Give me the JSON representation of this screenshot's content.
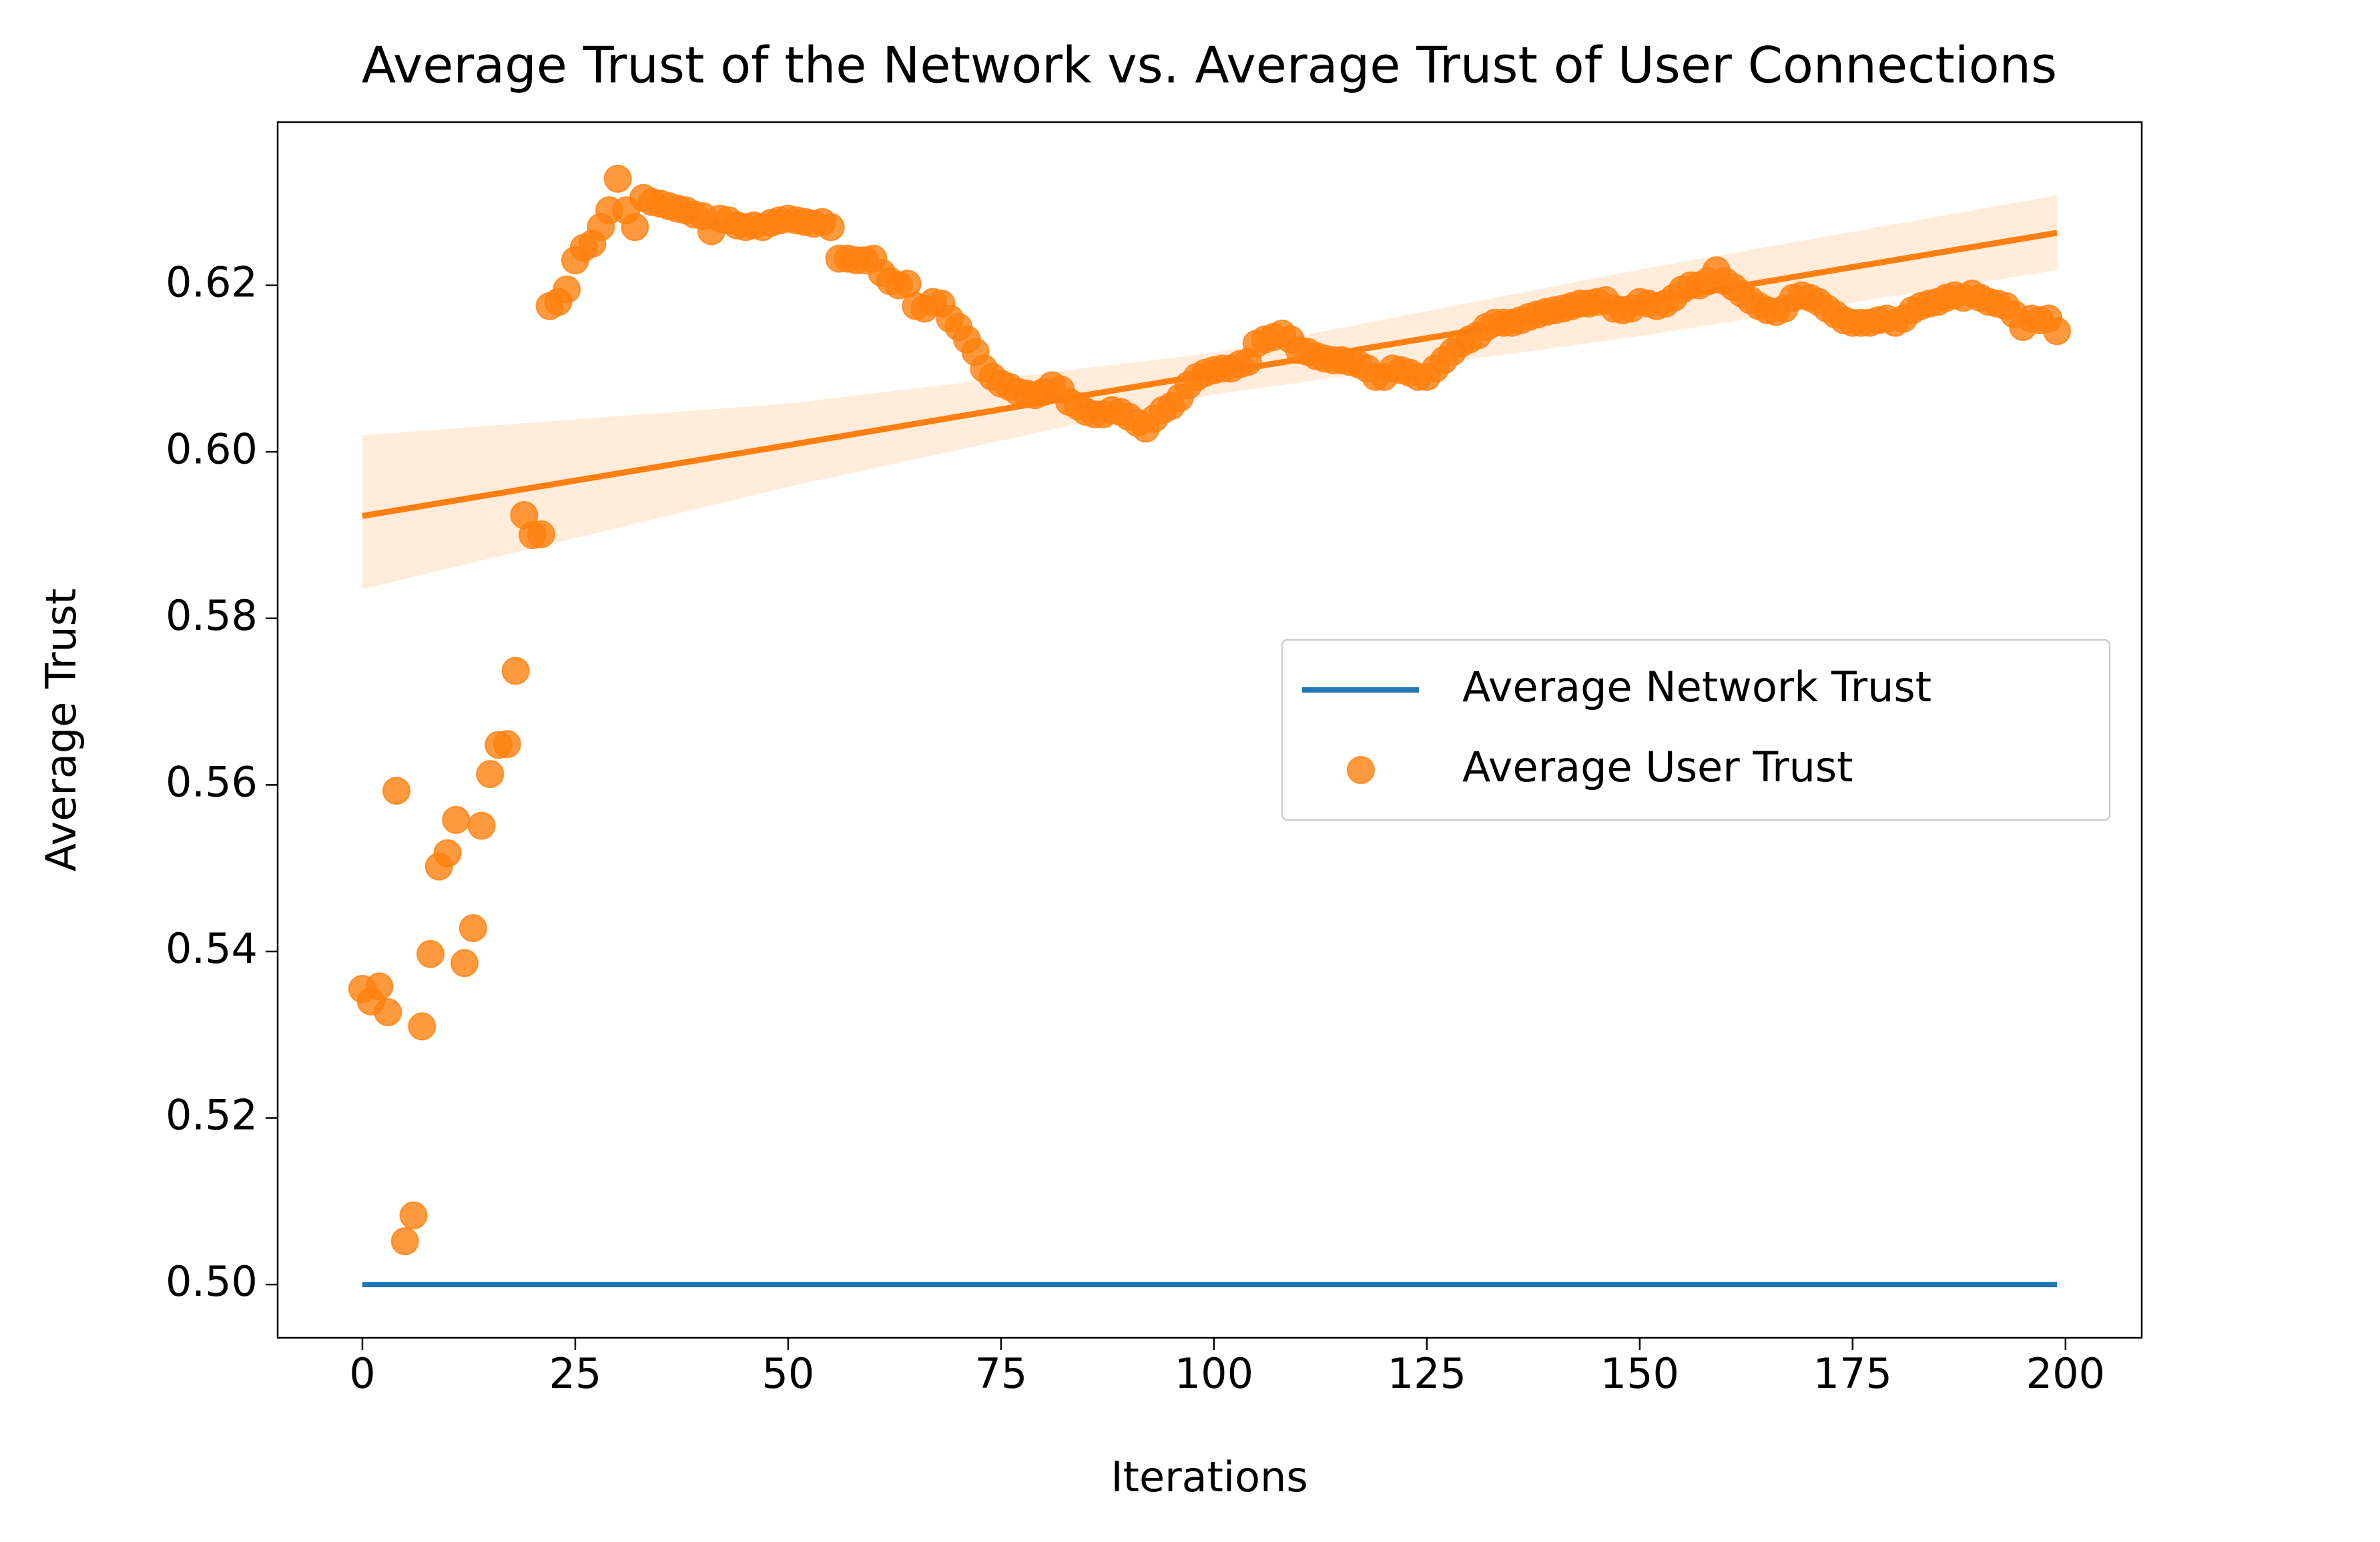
{
  "chart_data": {
    "type": "scatter",
    "title": "Average Trust of the Network vs. Average Trust of User Connections",
    "xlabel": "Iterations",
    "ylabel": "Average Trust",
    "xlim": [
      -9.95,
      208.95
    ],
    "ylim": [
      0.4936,
      0.6396
    ],
    "xticks": [
      0,
      25,
      50,
      75,
      100,
      125,
      150,
      175,
      200
    ],
    "yticks": [
      {
        "value": 0.5,
        "label": "0.50"
      },
      0.52,
      0.54,
      0.56,
      0.58,
      {
        "value": 0.6,
        "label": "0.60"
      },
      0.62
    ],
    "legend": "center right",
    "series": [
      {
        "name": "Average Network Trust",
        "type": "line",
        "color": "#1f77b4",
        "x": [
          0,
          199
        ],
        "values": [
          0.5,
          0.5
        ]
      },
      {
        "name": "Average User Trust",
        "type": "scatter",
        "color": "#ff7f0e",
        "x": [
          0,
          1,
          2,
          3,
          4,
          5,
          6,
          7,
          8,
          9,
          10,
          11,
          12,
          13,
          14,
          15,
          16,
          17,
          18,
          19,
          20,
          21,
          22,
          23,
          24,
          25,
          26,
          27,
          28,
          29,
          30,
          31,
          32,
          33,
          34,
          35,
          36,
          37,
          38,
          39,
          40,
          41,
          42,
          43,
          44,
          45,
          46,
          47,
          48,
          49,
          50,
          51,
          52,
          53,
          54,
          55,
          56,
          57,
          58,
          59,
          60,
          61,
          62,
          63,
          64,
          65,
          66,
          67,
          68,
          69,
          70,
          71,
          72,
          73,
          74,
          75,
          76,
          77,
          78,
          79,
          80,
          81,
          82,
          83,
          84,
          85,
          86,
          87,
          88,
          89,
          90,
          91,
          92,
          93,
          94,
          95,
          96,
          97,
          98,
          99,
          100,
          101,
          102,
          103,
          104,
          105,
          106,
          107,
          108,
          109,
          110,
          111,
          112,
          113,
          114,
          115,
          116,
          117,
          118,
          119,
          120,
          121,
          122,
          123,
          124,
          125,
          126,
          127,
          128,
          129,
          130,
          131,
          132,
          133,
          134,
          135,
          136,
          137,
          138,
          139,
          140,
          141,
          142,
          143,
          144,
          145,
          146,
          147,
          148,
          149,
          150,
          151,
          152,
          153,
          154,
          155,
          156,
          157,
          158,
          159,
          160,
          161,
          162,
          163,
          164,
          165,
          166,
          167,
          168,
          169,
          170,
          171,
          172,
          173,
          174,
          175,
          176,
          177,
          178,
          179,
          180,
          181,
          182,
          183,
          184,
          185,
          186,
          187,
          188,
          189,
          190,
          191,
          192,
          193,
          194,
          195,
          196,
          197,
          198,
          199
        ],
        "values": [
          0.5355,
          0.534,
          0.5358,
          0.5327,
          0.5593,
          0.5052,
          0.5083,
          0.531,
          0.5397,
          0.5502,
          0.5518,
          0.5558,
          0.5386,
          0.5428,
          0.5551,
          0.5613,
          0.5648,
          0.5649,
          0.5737,
          0.5924,
          0.59,
          0.5901,
          0.6175,
          0.618,
          0.6195,
          0.623,
          0.6245,
          0.625,
          0.627,
          0.629,
          0.6328,
          0.629,
          0.627,
          0.6305,
          0.63,
          0.6298,
          0.6295,
          0.6292,
          0.629,
          0.6285,
          0.6283,
          0.6265,
          0.628,
          0.6278,
          0.6272,
          0.627,
          0.6272,
          0.627,
          0.6275,
          0.6278,
          0.628,
          0.6278,
          0.6276,
          0.6274,
          0.6276,
          0.627,
          0.6232,
          0.6232,
          0.623,
          0.623,
          0.6232,
          0.6215,
          0.6205,
          0.62,
          0.6202,
          0.6175,
          0.6172,
          0.618,
          0.6178,
          0.616,
          0.615,
          0.6135,
          0.612,
          0.61,
          0.609,
          0.6082,
          0.6078,
          0.6072,
          0.607,
          0.6068,
          0.6072,
          0.608,
          0.6075,
          0.606,
          0.6055,
          0.6048,
          0.6045,
          0.6045,
          0.605,
          0.6048,
          0.6042,
          0.6035,
          0.6028,
          0.604,
          0.605,
          0.6055,
          0.6065,
          0.608,
          0.609,
          0.6095,
          0.6098,
          0.61,
          0.61,
          0.6105,
          0.6108,
          0.613,
          0.6135,
          0.6138,
          0.6142,
          0.6135,
          0.6122,
          0.612,
          0.6115,
          0.6112,
          0.611,
          0.611,
          0.6108,
          0.6105,
          0.61,
          0.609,
          0.609,
          0.61,
          0.6098,
          0.6095,
          0.609,
          0.609,
          0.61,
          0.611,
          0.612,
          0.613,
          0.6135,
          0.614,
          0.615,
          0.6155,
          0.6155,
          0.6155,
          0.6158,
          0.6162,
          0.6165,
          0.6168,
          0.617,
          0.6172,
          0.6175,
          0.6178,
          0.6178,
          0.618,
          0.6182,
          0.6172,
          0.617,
          0.6172,
          0.618,
          0.6178,
          0.6175,
          0.6178,
          0.6185,
          0.6195,
          0.62,
          0.62,
          0.6205,
          0.6218,
          0.6205,
          0.6198,
          0.619,
          0.6182,
          0.6175,
          0.617,
          0.6168,
          0.6172,
          0.6185,
          0.6188,
          0.6185,
          0.618,
          0.6172,
          0.6165,
          0.6158,
          0.6155,
          0.6155,
          0.6155,
          0.6158,
          0.616,
          0.6155,
          0.616,
          0.617,
          0.6175,
          0.6178,
          0.618,
          0.6185,
          0.6188,
          0.6185,
          0.619,
          0.6185,
          0.618,
          0.6178,
          0.6175,
          0.6165,
          0.615,
          0.616,
          0.6158,
          0.616,
          0.6145
        ]
      }
    ],
    "regression": {
      "color": "#ff7f0e",
      "x": [
        0,
        50,
        100,
        150,
        199
      ],
      "values": [
        0.5923,
        0.6008,
        0.6094,
        0.6179,
        0.6263
      ],
      "ci_lower": [
        0.5835,
        0.5958,
        0.6069,
        0.6139,
        0.6218
      ],
      "ci_upper": [
        0.602,
        0.6058,
        0.6119,
        0.6219,
        0.6308
      ]
    }
  }
}
